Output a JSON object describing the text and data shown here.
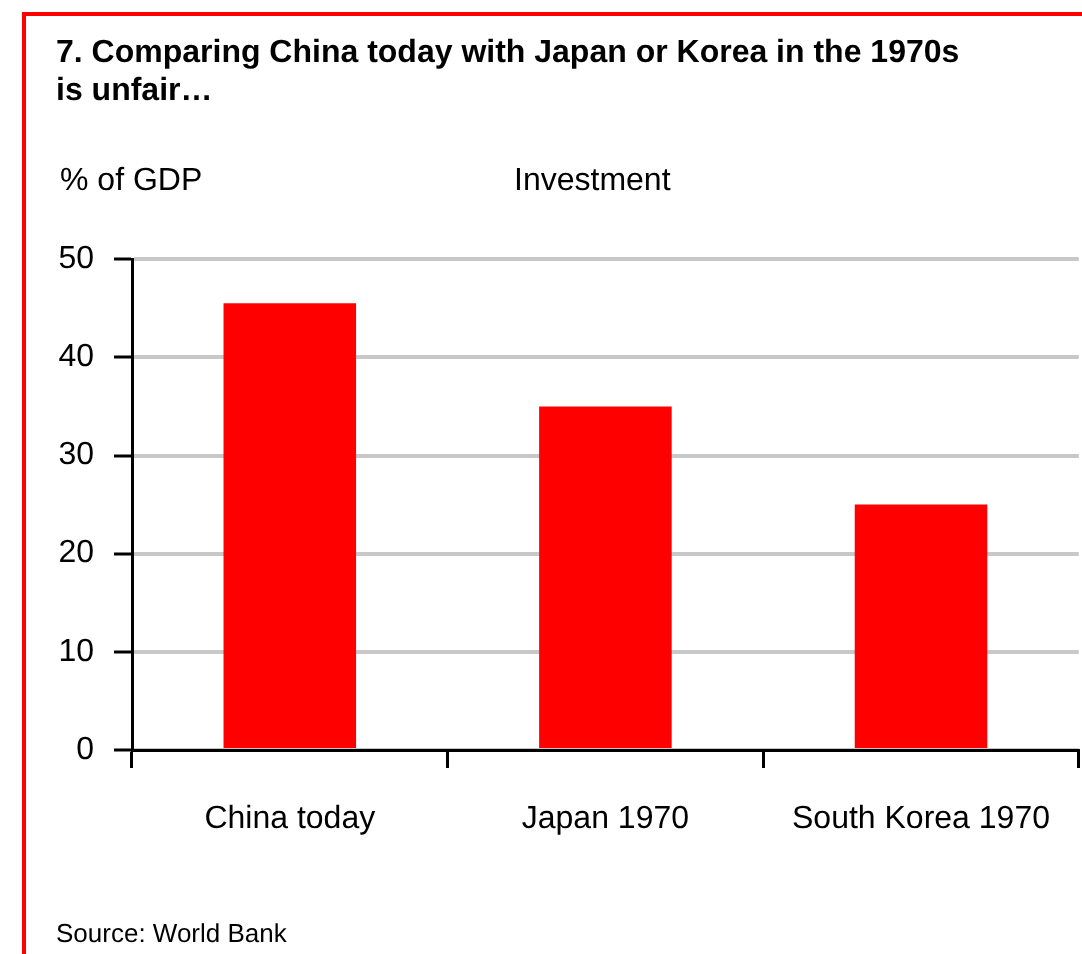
{
  "chart_data": {
    "type": "bar",
    "title": "7. Comparing China today with Japan or Korea in the 1970s is unfair…",
    "subtitle": "Investment",
    "ylabel": "% of GDP",
    "annotations": [
      "Source: World Bank"
    ],
    "categories": [
      "China today",
      "Japan 1970",
      "South Korea 1970"
    ],
    "values": [
      45.5,
      35,
      25
    ],
    "color": "#ff0000",
    "ylim": [
      0,
      50
    ],
    "yticks": [
      0,
      10,
      20,
      30,
      40,
      50
    ],
    "grid": "y"
  }
}
